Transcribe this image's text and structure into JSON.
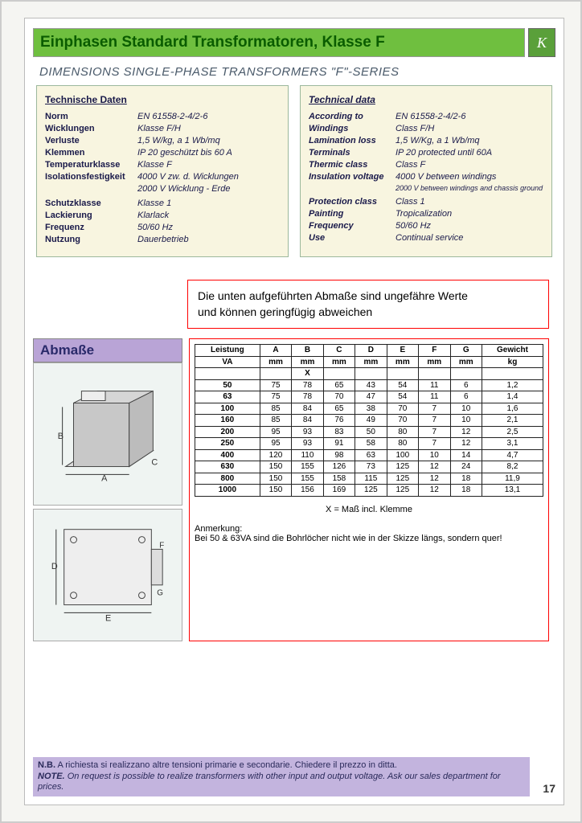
{
  "header": {
    "title": "Einphasen Standard Transformatoren, Klasse F",
    "subtitle": "DIMENSIONS SINGLE-PHASE TRANSFORMERS \"F\"-SERIES",
    "logo_letter": "K"
  },
  "colors": {
    "title_bg": "#6fbf3f",
    "title_text": "#0a5c00",
    "spec_bg": "#f8f5e0",
    "spec_border": "#9cb89c",
    "highlight_border": "#ff0000",
    "abmasse_bg": "#b9a4d6",
    "footer_bg": "#c3b4de"
  },
  "spec_de": {
    "heading": "Technische Daten",
    "rows": [
      {
        "label": "Norm",
        "value": "EN 61558-2-4/2-6"
      },
      {
        "label": "Wicklungen",
        "value": "Klasse F/H"
      },
      {
        "label": "Verluste",
        "value": "1,5 W/kg, a 1 Wb/mq"
      },
      {
        "label": "Klemmen",
        "value": "IP 20 geschützt bis 60 A"
      },
      {
        "label": "Temperaturklasse",
        "value": "Klasse F"
      },
      {
        "label": "Isolationsfestigkeit",
        "value": "4000 V zw. d. Wicklungen",
        "sub": "2000 V Wicklung - Erde"
      },
      {
        "gap": true
      },
      {
        "label": "Schutzklasse",
        "value": "Klasse 1"
      },
      {
        "label": "Lackierung",
        "value": "Klarlack"
      },
      {
        "label": "Frequenz",
        "value": "50/60 Hz"
      },
      {
        "label": "Nutzung",
        "value": "Dauerbetrieb"
      }
    ]
  },
  "spec_en": {
    "heading": "Technical data",
    "rows": [
      {
        "label": "According to",
        "value": "EN 61558-2-4/2-6"
      },
      {
        "label": "Windings",
        "value": "Class F/H"
      },
      {
        "label": "Lamination loss",
        "value": "1,5 W/Kg, a 1 Wb/mq"
      },
      {
        "label": "Terminals",
        "value": "IP 20 protected until 60A"
      },
      {
        "label": "Thermic class",
        "value": "Class F"
      },
      {
        "label": "Insulation voltage",
        "value": "4000 V between windings",
        "sub": "2000 V between windings and chassis ground"
      },
      {
        "gap": true
      },
      {
        "label": "Protection class",
        "value": "Class 1"
      },
      {
        "label": "Painting",
        "value": "Tropicalization"
      },
      {
        "label": "Frequency",
        "value": "50/60 Hz"
      },
      {
        "label": "Use",
        "value": "Continual service"
      }
    ]
  },
  "highlight": {
    "line1": "Die unten aufgeführten Abmaße sind ungefähre Werte",
    "line2": "und können geringfügig abweichen"
  },
  "abmasse_title": "Abmaße",
  "dim_table": {
    "header1": [
      "Leistung",
      "A",
      "B",
      "C",
      "D",
      "E",
      "F",
      "G",
      "Gewicht"
    ],
    "header2": [
      "VA",
      "mm",
      "mm",
      "mm",
      "mm",
      "mm",
      "mm",
      "mm",
      "kg"
    ],
    "x_col_index": 2,
    "rows": [
      [
        "50",
        "75",
        "78",
        "65",
        "43",
        "54",
        "11",
        "6",
        "1,2"
      ],
      [
        "63",
        "75",
        "78",
        "70",
        "47",
        "54",
        "11",
        "6",
        "1,4"
      ],
      [
        "100",
        "85",
        "84",
        "65",
        "38",
        "70",
        "7",
        "10",
        "1,6"
      ],
      [
        "160",
        "85",
        "84",
        "76",
        "49",
        "70",
        "7",
        "10",
        "2,1"
      ],
      [
        "200",
        "95",
        "93",
        "83",
        "50",
        "80",
        "7",
        "12",
        "2,5"
      ],
      [
        "250",
        "95",
        "93",
        "91",
        "58",
        "80",
        "7",
        "12",
        "3,1"
      ],
      [
        "400",
        "120",
        "110",
        "98",
        "63",
        "100",
        "10",
        "14",
        "4,7"
      ],
      [
        "630",
        "150",
        "155",
        "126",
        "73",
        "125",
        "12",
        "24",
        "8,2"
      ],
      [
        "800",
        "150",
        "155",
        "158",
        "115",
        "125",
        "12",
        "18",
        "11,9"
      ],
      [
        "1000",
        "150",
        "156",
        "169",
        "125",
        "125",
        "12",
        "18",
        "13,1"
      ]
    ],
    "x_note": "X = Maß incl. Klemme",
    "note_heading": "Anmerkung:",
    "note_text": "Bei 50 & 63VA sind die Bohrlöcher nicht wie in der Skizze längs, sondern quer!"
  },
  "footer": {
    "line1_label": "N.B.",
    "line1_text": "A richiesta si realizzano altre tensioni primarie e secondarie. Chiedere il prezzo in ditta.",
    "line2_label": "NOTE.",
    "line2_text": "On request is possible to realize transformers with other input and output voltage. Ask our sales department for prices.",
    "page_number": "17"
  }
}
